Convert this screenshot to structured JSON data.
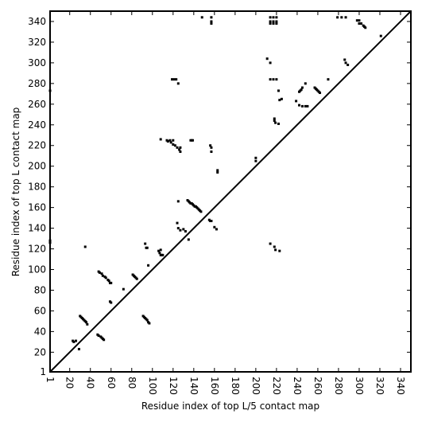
{
  "chart_data": {
    "type": "scatter",
    "xlabel": "Residue index of top L/5 contact map",
    "ylabel": "Residue index of top L contact map",
    "xlim": [
      1,
      350
    ],
    "ylim": [
      1,
      350
    ],
    "xticks": [
      1,
      20,
      40,
      60,
      80,
      100,
      120,
      140,
      160,
      180,
      200,
      220,
      240,
      260,
      280,
      300,
      320,
      340
    ],
    "yticks": [
      1,
      20,
      40,
      60,
      80,
      100,
      120,
      140,
      160,
      180,
      200,
      220,
      240,
      260,
      280,
      300,
      320,
      340
    ],
    "color": "#000000",
    "x": [
      30,
      31,
      32,
      33,
      34,
      35,
      36,
      37,
      23,
      24,
      26,
      29,
      48,
      49,
      51,
      52,
      54,
      55,
      57,
      58,
      59,
      60,
      59,
      60,
      81,
      82,
      83,
      84,
      85,
      72,
      35,
      1,
      1,
      1,
      96,
      106,
      107,
      108,
      109,
      110,
      108,
      93,
      94,
      95,
      108,
      114,
      115,
      117,
      118,
      120,
      120,
      122,
      124,
      126,
      127,
      127,
      137,
      138,
      139,
      119,
      121,
      123,
      125,
      125,
      124,
      125,
      127,
      130,
      132,
      134,
      135,
      136,
      137,
      138,
      139,
      140,
      141,
      142,
      143,
      144,
      145,
      146,
      147,
      135,
      155,
      156,
      157,
      160,
      162,
      156,
      157,
      157,
      163,
      163,
      148,
      157,
      157,
      157,
      200,
      200,
      211,
      214,
      214,
      217,
      220,
      214,
      217,
      220,
      214,
      217,
      220,
      214,
      217,
      220,
      218,
      218,
      219,
      222,
      222,
      223,
      225,
      242,
      243,
      244,
      245,
      239,
      242,
      245,
      248,
      250,
      248,
      257,
      258,
      259,
      260,
      261,
      262,
      270,
      279,
      283,
      287,
      286,
      287,
      289,
      298,
      300,
      302,
      304,
      305,
      306,
      300,
      321,
      214,
      218,
      219,
      223,
      47,
      48,
      50,
      51,
      52,
      53,
      91,
      92,
      93,
      94,
      95,
      96,
      97
    ],
    "values": [
      55,
      54,
      53,
      52,
      51,
      50,
      49,
      47,
      31,
      30,
      31,
      23,
      98,
      97,
      96,
      94,
      93,
      92,
      90,
      89,
      87,
      87,
      69,
      68,
      95,
      94,
      93,
      92,
      91,
      81,
      122,
      128,
      126,
      273,
      104,
      118,
      116,
      114,
      114,
      114,
      119,
      125,
      121,
      121,
      226,
      225,
      224,
      225,
      223,
      225,
      221,
      220,
      218,
      216,
      218,
      214,
      225,
      225,
      225,
      284,
      284,
      284,
      280,
      166,
      145,
      140,
      138,
      139,
      137,
      167,
      166,
      165,
      164,
      164,
      163,
      162,
      161,
      161,
      160,
      159,
      158,
      157,
      156,
      129,
      148,
      147,
      147,
      141,
      139,
      220,
      218,
      214,
      196,
      194,
      344,
      344,
      340,
      338,
      205,
      208,
      304,
      300,
      284,
      284,
      284,
      344,
      344,
      344,
      340,
      340,
      340,
      338,
      338,
      338,
      246,
      244,
      242,
      241,
      273,
      264,
      265,
      272,
      273,
      274,
      276,
      263,
      259,
      258,
      258,
      258,
      280,
      276,
      275,
      274,
      273,
      272,
      271,
      284,
      344,
      344,
      344,
      303,
      300,
      298,
      341,
      341,
      338,
      336,
      335,
      334,
      338,
      326,
      125,
      122,
      119,
      118,
      37,
      36,
      35,
      34,
      33,
      32,
      55,
      54,
      53,
      52,
      51,
      49,
      48
    ]
  }
}
